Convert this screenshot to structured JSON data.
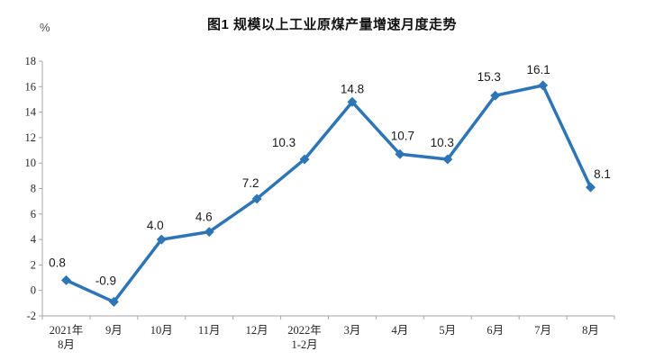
{
  "chart_data": {
    "type": "line",
    "title": "图1 规模以上工业原煤产量增速月度走势",
    "unit": "%",
    "categories": [
      [
        "2021年",
        "8月"
      ],
      [
        "9月"
      ],
      [
        "10月"
      ],
      [
        "11月"
      ],
      [
        "12月"
      ],
      [
        "2022年",
        "1-2月"
      ],
      [
        "3月"
      ],
      [
        "4月"
      ],
      [
        "5月"
      ],
      [
        "6月"
      ],
      [
        "7月"
      ],
      [
        "8月"
      ]
    ],
    "values": [
      0.8,
      -0.9,
      4.0,
      4.6,
      7.2,
      10.3,
      14.8,
      10.7,
      10.3,
      15.3,
      16.1,
      8.1
    ],
    "data_labels": [
      "0.8",
      "-0.9",
      "4.0",
      "4.6",
      "7.2",
      "10.3",
      "14.8",
      "10.7",
      "10.3",
      "15.3",
      "16.1",
      "8.1"
    ],
    "ylim": [
      -2,
      18
    ],
    "ytick_step": 2,
    "ytick_labels": [
      "-2",
      "0",
      "2",
      "4",
      "6",
      "8",
      "10",
      "12",
      "14",
      "16",
      "18"
    ],
    "grid": false,
    "legend": false,
    "marker": "diamond",
    "line_color": "#2E75B6",
    "axis_color": "#A6A6A6",
    "tick_label_color": "#262626",
    "data_label_color": "#1a1a1a",
    "label_offsets": {
      "dx": [
        -10,
        -9,
        -7,
        -6,
        -7,
        -23,
        0,
        3,
        -6,
        -7,
        -5,
        13
      ],
      "dy": [
        -15,
        -19,
        -11,
        -12,
        -13,
        -14,
        -10,
        -16,
        -14,
        -16,
        -13,
        -10
      ]
    }
  }
}
